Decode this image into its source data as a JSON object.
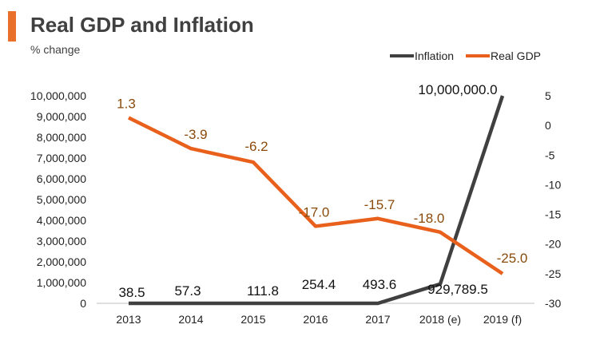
{
  "header": {
    "title": "Real GDP and Inflation",
    "subtitle": "% change",
    "accent_color": "#e8702a"
  },
  "chart_data": {
    "type": "line",
    "title": "Real GDP and Inflation",
    "subtitle": "% change",
    "categories": [
      "2013",
      "2014",
      "2015",
      "2016",
      "2017",
      "2018 (e)",
      "2019 (f)"
    ],
    "legend_position": "top-right",
    "grid": false,
    "y_left": {
      "ylim": [
        0,
        10000000
      ],
      "ticks": [
        "0",
        "1,000,000",
        "2,000,000",
        "3,000,000",
        "4,000,000",
        "5,000,000",
        "6,000,000",
        "7,000,000",
        "8,000,000",
        "9,000,000",
        "10,000,000"
      ]
    },
    "y_right": {
      "ylim": [
        -30,
        5
      ],
      "ticks": [
        "5",
        "0",
        "-5",
        "-10",
        "-15",
        "-20",
        "-25",
        "-30"
      ]
    },
    "series": [
      {
        "name": "Inflation",
        "axis": "left",
        "color": "#404040",
        "values": [
          38.5,
          57.3,
          111.8,
          254.4,
          493.6,
          929789.5,
          10000000.0
        ],
        "labels": [
          "38.5",
          "57.3",
          "111.8",
          "254.4",
          "493.6",
          "929,789.5",
          "10,000,000.0"
        ]
      },
      {
        "name": "Real GDP",
        "axis": "right",
        "color": "#e8601c",
        "values": [
          1.3,
          -3.9,
          -6.2,
          -17.0,
          -15.7,
          -18.0,
          -25.0
        ],
        "labels": [
          "1.3",
          "-3.9",
          "-6.2",
          "-17.0",
          "-15.7",
          "-18.0",
          "-25.0"
        ]
      }
    ]
  }
}
